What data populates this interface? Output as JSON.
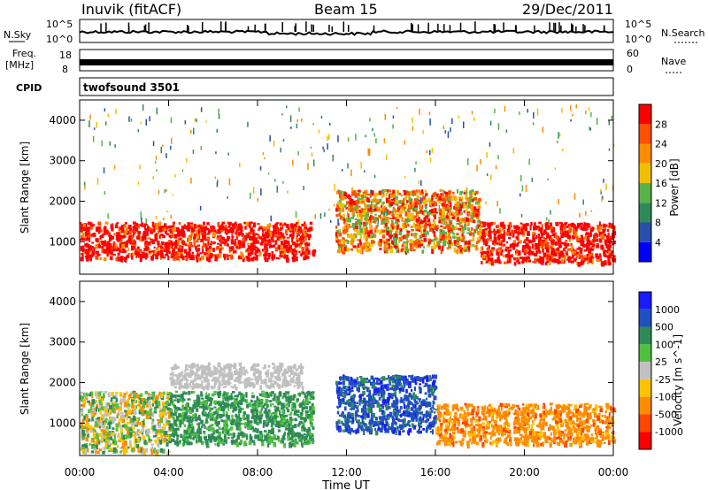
{
  "header": {
    "station": "Inuvik (fitACF)",
    "beam": "Beam 15",
    "date": "29/Dec/2011"
  },
  "summary_panels": {
    "nsky_label": "N.Sky",
    "nsky_ticks": [
      "10^5",
      "10^0"
    ],
    "nsearch_label": "N.Search",
    "nsearch_ticks": [
      "10^5",
      "10^0"
    ],
    "freq_label": "Freq.",
    "freq_unit": "[MHz]",
    "freq_ticks": [
      "18",
      "8"
    ],
    "nave_label": "Nave",
    "nave_ticks": [
      "60",
      "0"
    ],
    "cpid_label": "CPID",
    "cpid_value": "twofsound 3501"
  },
  "colors": {
    "power": [
      "#0000ff",
      "#2a4fa8",
      "#2f8a5a",
      "#5ab14a",
      "#f0c000",
      "#ff8c00",
      "#ff5000",
      "#ff0000"
    ],
    "velocity": [
      "#ff0000",
      "#ff4500",
      "#ff8c00",
      "#ffc200",
      "#c0c0c0",
      "#50c040",
      "#2e8b57",
      "#2050c0",
      "#1a1aff"
    ]
  },
  "chart_data": [
    {
      "type": "heatmap",
      "title": "",
      "quantity": "Power",
      "xlabel": "",
      "ylabel": "Slant Range [km]",
      "x_ticks": [
        "00:00",
        "04:00",
        "08:00",
        "12:00",
        "16:00",
        "20:00",
        "00:00"
      ],
      "y_ticks": [
        "1000",
        "2000",
        "3000",
        "4000"
      ],
      "ylim": [
        200,
        4500
      ],
      "colorbar_label": "Power [dB]",
      "colorbar_ticks": [
        "4",
        "8",
        "12",
        "16",
        "20",
        "24",
        "28"
      ],
      "colorbar_range": [
        0,
        32
      ],
      "features": [
        {
          "t": [
            0,
            10.5
          ],
          "range": [
            600,
            1500
          ],
          "level": "high"
        },
        {
          "t": [
            11.5,
            18
          ],
          "range": [
            800,
            2300
          ],
          "level": "medium-high"
        },
        {
          "t": [
            18,
            24
          ],
          "range": [
            500,
            1500
          ],
          "level": "high"
        },
        {
          "t": [
            0,
            24
          ],
          "range": [
            1500,
            4400
          ],
          "level": "sparse"
        }
      ]
    },
    {
      "type": "heatmap",
      "title": "",
      "quantity": "Velocity",
      "xlabel": "Time UT",
      "ylabel": "Slant Range [km]",
      "x_ticks": [
        "00:00",
        "04:00",
        "08:00",
        "12:00",
        "16:00",
        "20:00",
        "00:00"
      ],
      "y_ticks": [
        "1000",
        "2000",
        "3000",
        "4000"
      ],
      "ylim": [
        200,
        4500
      ],
      "colorbar_label": "Velocity [m s^-1]",
      "colorbar_ticks": [
        "1000",
        "500",
        "100",
        "25",
        "-25",
        "-100",
        "-500",
        "-1000"
      ],
      "features": [
        {
          "t": [
            0,
            4
          ],
          "range": [
            300,
            1800
          ],
          "velocity": "low positive / negative mix"
        },
        {
          "t": [
            4,
            10.5
          ],
          "range": [
            500,
            1800
          ],
          "velocity": "positive (green)"
        },
        {
          "t": [
            4,
            10
          ],
          "range": [
            1900,
            2500
          ],
          "velocity": "near zero (grey)"
        },
        {
          "t": [
            11.5,
            16
          ],
          "range": [
            800,
            2200
          ],
          "velocity": "positive (blue)"
        },
        {
          "t": [
            16,
            24
          ],
          "range": [
            500,
            1500
          ],
          "velocity": "negative (orange)"
        }
      ]
    }
  ]
}
